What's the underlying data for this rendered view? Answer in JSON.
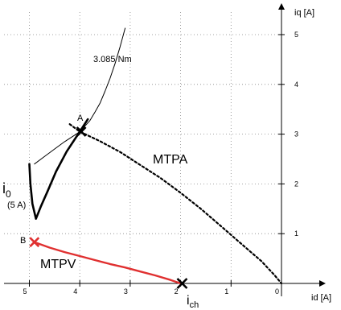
{
  "chart_data": {
    "type": "line",
    "title": "",
    "xlabel": "id [A]",
    "ylabel": "iq [A]",
    "x_axis": {
      "range": [
        5.0,
        0.0
      ],
      "reversed": true,
      "ticks": [
        5,
        4,
        3,
        2,
        1,
        0
      ],
      "tick_labels": [
        "5",
        "4",
        "3",
        "2",
        "1",
        "0"
      ]
    },
    "y_axis": {
      "range": [
        0.0,
        5.0
      ],
      "ticks": [
        1,
        2,
        3,
        4,
        5
      ],
      "tick_labels": [
        "1",
        "2",
        "3",
        "4",
        "5"
      ]
    },
    "grid": true,
    "series": [
      {
        "name": "3.085 Nm",
        "style": "thin-solid",
        "color": "#000000",
        "x": [
          4.9,
          4.7,
          4.5,
          4.3,
          4.1,
          4.0,
          3.9,
          3.8,
          3.7,
          3.6,
          3.5,
          3.4,
          3.3,
          3.2,
          3.1
        ],
        "y": [
          2.4,
          2.55,
          2.7,
          2.85,
          2.98,
          3.05,
          3.16,
          3.27,
          3.44,
          3.62,
          3.86,
          4.12,
          4.42,
          4.76,
          5.13
        ]
      },
      {
        "name": "i0 (5 A)",
        "style": "thick-solid",
        "color": "#000000",
        "x": [
          5.0,
          4.98,
          4.94,
          4.87,
          4.77,
          4.64,
          4.47,
          4.26,
          4.0,
          3.84
        ],
        "y": [
          2.4,
          2.0,
          1.6,
          1.3,
          1.55,
          1.85,
          2.25,
          2.65,
          3.05,
          3.3
        ]
      },
      {
        "name": "MTPA",
        "style": "dotted",
        "color": "#000000",
        "x": [
          4.2,
          4.0,
          3.6,
          3.2,
          2.8,
          2.4,
          2.0,
          1.6,
          1.2,
          0.8,
          0.4,
          0.15,
          0.0
        ],
        "y": [
          3.2,
          3.05,
          2.86,
          2.64,
          2.38,
          2.12,
          1.82,
          1.5,
          1.15,
          0.8,
          0.45,
          0.18,
          0.0
        ]
      },
      {
        "name": "MTPV",
        "style": "solid",
        "color": "#e03030",
        "x": [
          4.9,
          4.6,
          4.3,
          4.0,
          3.7,
          3.4,
          3.1,
          2.8,
          2.5,
          2.2,
          2.0
        ],
        "y": [
          0.83,
          0.72,
          0.63,
          0.55,
          0.47,
          0.39,
          0.32,
          0.24,
          0.16,
          0.07,
          0.0
        ]
      }
    ],
    "points": [
      {
        "label": "A",
        "x": 3.97,
        "y": 3.05,
        "marker": "x",
        "color": "#000000"
      },
      {
        "label": "B",
        "x": 4.9,
        "y": 0.83,
        "marker": "x",
        "color": "#e03030"
      },
      {
        "label": "ich",
        "x": 1.97,
        "y": 0.0,
        "marker": "x",
        "color": "#000000"
      }
    ],
    "annotations": {
      "torque": "3.085 Nm",
      "mtpa": "MTPA",
      "mtpv": "MTPV",
      "i0_main": "i",
      "i0_sub": "0",
      "i0_note": "(5 A)",
      "point_a": "A",
      "point_b": "B",
      "ich_main": "i",
      "ich_sub": "ch"
    }
  }
}
